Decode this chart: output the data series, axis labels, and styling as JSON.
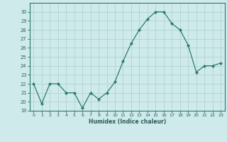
{
  "x": [
    0,
    1,
    2,
    3,
    4,
    5,
    6,
    7,
    8,
    9,
    10,
    11,
    12,
    13,
    14,
    15,
    16,
    17,
    18,
    19,
    20,
    21,
    22,
    23
  ],
  "y": [
    22.0,
    19.8,
    22.0,
    22.0,
    21.0,
    21.0,
    19.3,
    21.0,
    20.3,
    21.0,
    22.2,
    24.5,
    26.5,
    28.0,
    29.2,
    30.0,
    30.0,
    28.7,
    28.0,
    26.3,
    23.3,
    24.0,
    24.0,
    24.3
  ],
  "line_color": "#2d7a6e",
  "marker_color": "#2d7a6e",
  "bg_color": "#ceeaea",
  "grid_color": "#b0d4d4",
  "xlabel": "Humidex (Indice chaleur)",
  "ylim": [
    19,
    31
  ],
  "yticks": [
    19,
    20,
    21,
    22,
    23,
    24,
    25,
    26,
    27,
    28,
    29,
    30
  ],
  "xlim": [
    -0.5,
    23.5
  ],
  "xticks": [
    0,
    1,
    2,
    3,
    4,
    5,
    6,
    7,
    8,
    9,
    10,
    11,
    12,
    13,
    14,
    15,
    16,
    17,
    18,
    19,
    20,
    21,
    22,
    23
  ],
  "tick_color": "#2d5a5a",
  "spine_color": "#2d7a6e"
}
